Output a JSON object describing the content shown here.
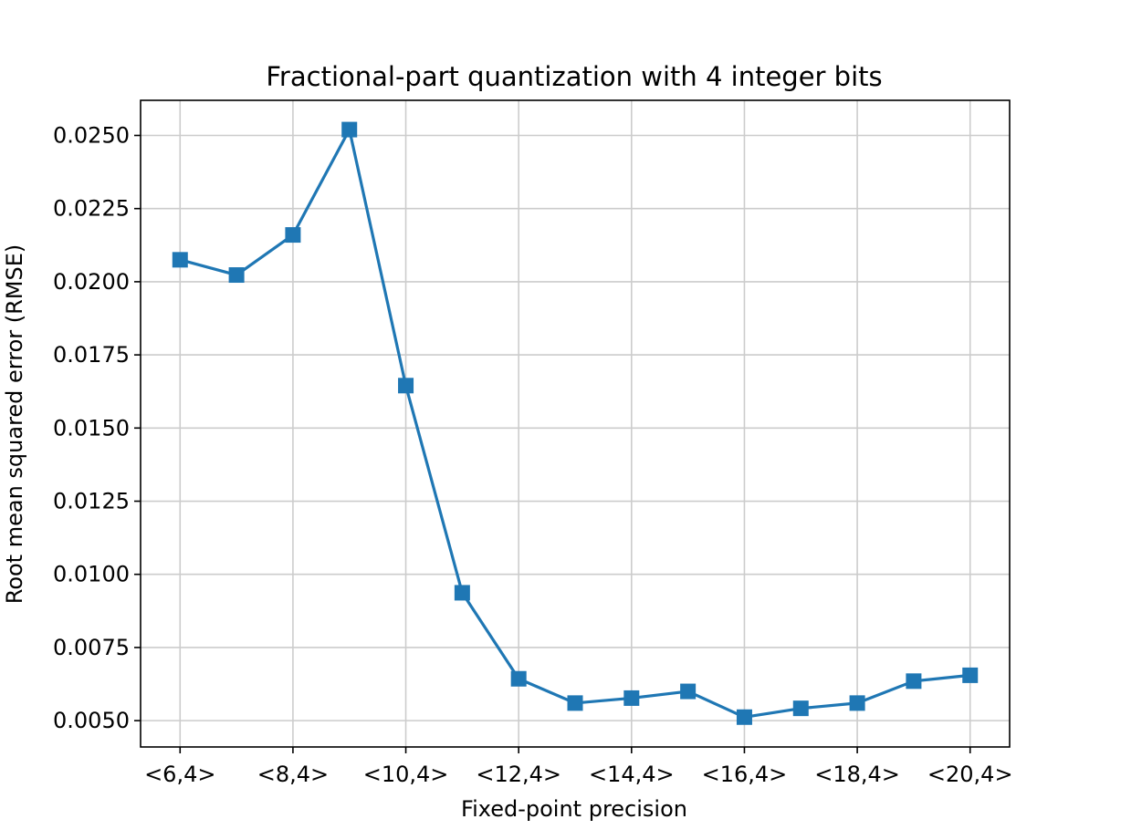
{
  "chart_data": {
    "type": "line",
    "title": "Fractional-part quantization with 4 integer bits",
    "xlabel": "Fixed-point precision",
    "ylabel": "Root mean squared error (RMSE)",
    "x": [
      6,
      7,
      8,
      9,
      10,
      11,
      12,
      13,
      14,
      15,
      16,
      17,
      18,
      19,
      20
    ],
    "x_tick_values": [
      6,
      8,
      10,
      12,
      14,
      16,
      18,
      20
    ],
    "x_tick_labels": [
      "<6,4>",
      "<8,4>",
      "<10,4>",
      "<12,4>",
      "<14,4>",
      "<16,4>",
      "<18,4>",
      "<20,4>"
    ],
    "y_tick_values": [
      0.005,
      0.0075,
      0.01,
      0.0125,
      0.015,
      0.0175,
      0.02,
      0.0225,
      0.025
    ],
    "y_tick_labels": [
      "0.0050",
      "0.0075",
      "0.0100",
      "0.0125",
      "0.0150",
      "0.0175",
      "0.0200",
      "0.0225",
      "0.0250"
    ],
    "xlim": [
      5.3,
      20.7
    ],
    "ylim": [
      0.0041,
      0.0262
    ],
    "grid": true,
    "marker": "square",
    "series": [
      {
        "color": "#1f77b4",
        "values": [
          0.02075,
          0.02023,
          0.0216,
          0.0252,
          0.01645,
          0.00937,
          0.00643,
          0.0056,
          0.00577,
          0.006,
          0.00512,
          0.00542,
          0.0056,
          0.00635,
          0.00655
        ]
      }
    ]
  }
}
